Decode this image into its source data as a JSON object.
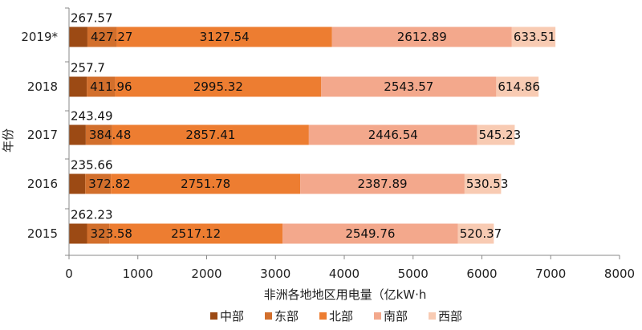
{
  "chart_data": {
    "type": "bar",
    "orientation": "horizontal",
    "stacked": true,
    "title": "",
    "xlabel": "非洲各地地区用电量（亿kW·h",
    "ylabel": "年份",
    "xlim": [
      0,
      8000
    ],
    "xticks": [
      0,
      1000,
      2000,
      3000,
      4000,
      5000,
      6000,
      7000,
      8000
    ],
    "grid": false,
    "legend_position": "bottom",
    "categories": [
      "2019*",
      "2018",
      "2017",
      "2016",
      "2015"
    ],
    "series": [
      {
        "name": "中部",
        "color": "#9c4a14",
        "values": [
          267.57,
          257.7,
          243.49,
          235.66,
          262.23
        ]
      },
      {
        "name": "东部",
        "color": "#d26f2c",
        "values": [
          427.27,
          411.96,
          384.48,
          372.82,
          323.58
        ]
      },
      {
        "name": "北部",
        "color": "#ed7d31",
        "values": [
          3127.54,
          2995.32,
          2857.41,
          2751.78,
          2517.12
        ]
      },
      {
        "name": "南部",
        "color": "#f3a88c",
        "values": [
          2612.89,
          2543.57,
          2446.54,
          2387.89,
          2549.76
        ]
      },
      {
        "name": "西部",
        "color": "#f8cbb3",
        "values": [
          633.51,
          614.86,
          545.23,
          530.53,
          520.37
        ]
      }
    ]
  }
}
